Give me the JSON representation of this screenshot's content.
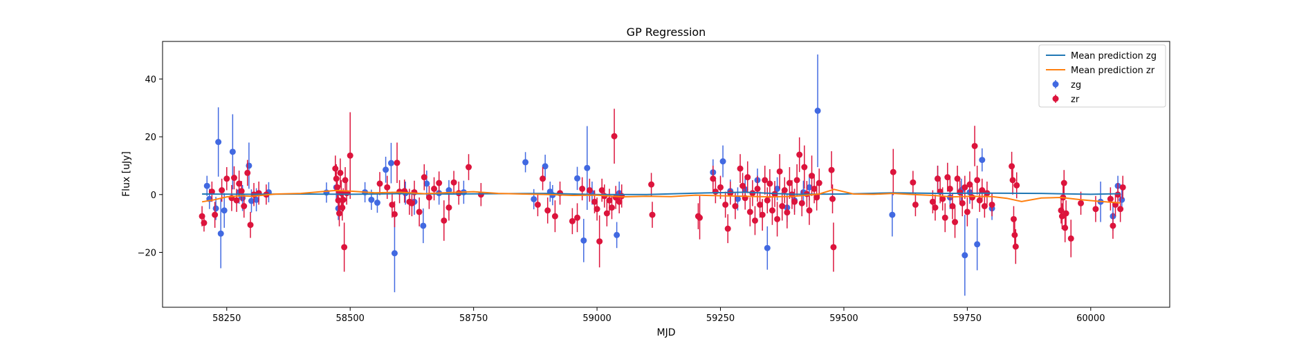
{
  "chart_data": {
    "type": "scatter",
    "title": "GP Regression",
    "xlabel": "MJD",
    "ylabel": "Flux [uJy]",
    "xlim": [
      58120,
      60160
    ],
    "ylim": [
      -39,
      53
    ],
    "xticks": [
      58250,
      58500,
      58750,
      59000,
      59250,
      59500,
      59750,
      60000
    ],
    "yticks": [
      -20,
      0,
      20,
      40
    ],
    "ytick_labels": [
      "−20",
      "0",
      "20",
      "40"
    ],
    "legend_position": "top-right",
    "legend": [
      {
        "label": "Mean prediction zg",
        "kind": "line",
        "color": "#1f77b4"
      },
      {
        "label": "Mean prediction zr",
        "kind": "line",
        "color": "#ff7f0e"
      },
      {
        "label": "zg",
        "kind": "marker",
        "color": "#4169e1"
      },
      {
        "label": "zr",
        "kind": "marker",
        "color": "#dc143c"
      }
    ],
    "series": [
      {
        "name": "Mean prediction zg",
        "kind": "line",
        "color": "#1f77b4",
        "x": [
          58200,
          58300,
          58400,
          58500,
          58600,
          58700,
          58800,
          58900,
          59000,
          59100,
          59200,
          59300,
          59400,
          59500,
          59600,
          59700,
          59800,
          59900,
          60000,
          60060
        ],
        "y": [
          0.2,
          0.1,
          0.2,
          0.1,
          0.3,
          0.2,
          0.3,
          0.4,
          0.0,
          0.0,
          0.5,
          0.8,
          0.1,
          0.2,
          0.6,
          0.4,
          0.5,
          0.4,
          0.1,
          0.3
        ]
      },
      {
        "name": "Mean prediction zr",
        "kind": "line",
        "color": "#ff7f0e",
        "x": [
          58200,
          58225,
          58250,
          58280,
          58300,
          58350,
          58400,
          58470,
          58500,
          58550,
          58600,
          58650,
          58700,
          58750,
          58800,
          58850,
          58900,
          58950,
          59000,
          59050,
          59100,
          59150,
          59200,
          59250,
          59300,
          59350,
          59400,
          59450,
          59480,
          59520,
          59560,
          59600,
          59640,
          59680,
          59720,
          59760,
          59800,
          59830,
          59860,
          59900,
          59940,
          59980,
          60020,
          60060
        ],
        "y": [
          -2.5,
          -1.8,
          -0.8,
          -0.4,
          -0.6,
          0.2,
          0.4,
          1.4,
          1.2,
          0.6,
          0.8,
          0.3,
          0.7,
          1.0,
          0.4,
          0.2,
          0.0,
          -0.3,
          -0.2,
          -0.8,
          -0.6,
          -0.7,
          -0.2,
          -0.4,
          -0.6,
          -0.8,
          -0.6,
          0.2,
          1.8,
          0.2,
          0.1,
          0.4,
          0.0,
          -0.3,
          -0.8,
          -0.6,
          -0.7,
          -1.3,
          -2.4,
          -1.2,
          -1.0,
          -1.8,
          -2.4,
          -2.9
        ]
      },
      {
        "name": "zg",
        "kind": "errorbar",
        "color": "#4169e1",
        "x": [
          58210,
          58215,
          58228,
          58233,
          58238,
          58245,
          58262,
          58275,
          58282,
          58295,
          58300,
          58310,
          58335,
          58452,
          58472,
          58476,
          58530,
          58543,
          58555,
          58572,
          58583,
          58590,
          58612,
          58630,
          58648,
          58655,
          58680,
          58700,
          58730,
          58855,
          58872,
          58895,
          58905,
          58910,
          58960,
          58973,
          58980,
          58990,
          59040,
          59045,
          59235,
          59255,
          59270,
          59285,
          59300,
          59325,
          59345,
          59365,
          59385,
          59400,
          59418,
          59430,
          59447,
          59598,
          59690,
          59715,
          59738,
          59745,
          59755,
          59770,
          59780,
          59800,
          60020,
          60045,
          60055,
          60063
        ],
        "y": [
          3.0,
          -1.5,
          -4.8,
          18.2,
          -13.5,
          -5.5,
          14.8,
          0.8,
          -1.2,
          10.0,
          -2.2,
          -1.8,
          0.8,
          0.7,
          2.5,
          -4.8,
          0.8,
          -1.8,
          -2.8,
          8.6,
          10.9,
          -20.3,
          0.5,
          -2.5,
          -10.8,
          3.8,
          0.5,
          1.5,
          0.8,
          11.2,
          -1.6,
          9.8,
          1.0,
          -0.2,
          5.6,
          -15.9,
          9.2,
          0.5,
          -14.0,
          0.5,
          7.7,
          11.5,
          1.2,
          -1.5,
          1.8,
          5.0,
          -18.5,
          2.0,
          -4.5,
          -2.0,
          0.8,
          2.5,
          29.0,
          -7.0,
          5.5,
          -1.0,
          1.5,
          -21.0,
          0.8,
          -17.2,
          12.0,
          -4.8,
          -2.5,
          -7.5,
          3.0,
          -1.8
        ],
        "err": [
          3.5,
          3.5,
          4.0,
          12.0,
          12.0,
          6.0,
          13.0,
          4.0,
          4.5,
          8.0,
          4.0,
          4.0,
          3.5,
          3.5,
          4.0,
          4.0,
          3.5,
          3.5,
          3.5,
          4.5,
          7.0,
          13.5,
          4.0,
          4.5,
          6.0,
          4.5,
          4.0,
          3.5,
          4.0,
          3.5,
          3.5,
          4.0,
          3.5,
          3.5,
          4.0,
          7.5,
          14.5,
          4.0,
          4.5,
          4.0,
          4.5,
          5.5,
          4.0,
          4.0,
          4.0,
          4.0,
          7.5,
          4.0,
          5.0,
          4.0,
          4.0,
          4.5,
          19.5,
          7.5,
          4.5,
          4.0,
          4.0,
          14.0,
          4.0,
          9.0,
          4.0,
          4.0,
          7.0,
          5.0,
          3.5,
          4.0
        ]
      },
      {
        "name": "zr",
        "kind": "errorbar",
        "color": "#dc143c",
        "x": [
          58200,
          58204,
          58220,
          58226,
          58240,
          58250,
          58260,
          58265,
          58270,
          58275,
          58280,
          58285,
          58292,
          58298,
          58305,
          58315,
          58330,
          58470,
          58472,
          58474,
          58476,
          58478,
          58480,
          58482,
          58484,
          58486,
          58488,
          58490,
          58493,
          58500,
          58560,
          58575,
          58585,
          58590,
          58595,
          58600,
          58610,
          58620,
          58625,
          58630,
          58640,
          58650,
          58660,
          58670,
          58680,
          58690,
          58700,
          58710,
          58720,
          58740,
          58765,
          58880,
          58890,
          58900,
          58915,
          58925,
          58950,
          58960,
          58970,
          58985,
          58995,
          59000,
          59005,
          59010,
          59015,
          59020,
          59025,
          59030,
          59035,
          59038,
          59045,
          59050,
          59110,
          59112,
          59205,
          59208,
          59235,
          59240,
          59250,
          59260,
          59265,
          59270,
          59280,
          59290,
          59295,
          59300,
          59305,
          59310,
          59315,
          59320,
          59325,
          59330,
          59335,
          59340,
          59345,
          59350,
          59355,
          59360,
          59365,
          59370,
          59375,
          59380,
          59385,
          59390,
          59395,
          59400,
          59405,
          59410,
          59415,
          59420,
          59425,
          59430,
          59435,
          59440,
          59445,
          59450,
          59475,
          59477,
          59479,
          59600,
          59640,
          59645,
          59680,
          59685,
          59690,
          59695,
          59700,
          59705,
          59710,
          59715,
          59720,
          59725,
          59730,
          59735,
          59740,
          59745,
          59750,
          59755,
          59760,
          59765,
          59770,
          59775,
          59780,
          59785,
          59790,
          59800,
          59840,
          59842,
          59844,
          59846,
          59848,
          59850,
          59940,
          59942,
          59944,
          59946,
          59948,
          59950,
          59960,
          59980,
          60010,
          60040,
          60045,
          60050,
          60055,
          60060,
          60065
        ],
        "y": [
          -7.5,
          -9.8,
          1.0,
          -7.0,
          1.5,
          5.5,
          -1.2,
          5.8,
          -2.0,
          3.8,
          1.2,
          -4.0,
          7.5,
          -10.5,
          0.0,
          0.5,
          0.0,
          9.0,
          5.5,
          2.5,
          -2.0,
          -6.5,
          7.5,
          0.5,
          -4.5,
          -1.8,
          -18.2,
          5.0,
          0.5,
          13.5,
          3.8,
          2.5,
          -3.5,
          -6.8,
          11.0,
          1.0,
          1.2,
          -2.5,
          -3.0,
          0.8,
          -6.0,
          6.0,
          -1.0,
          2.0,
          4.0,
          -9.0,
          -4.5,
          4.2,
          0.5,
          9.5,
          0.0,
          -3.5,
          5.5,
          -5.5,
          -7.5,
          0.5,
          -9.2,
          -8.0,
          2.0,
          1.5,
          -2.5,
          -5.0,
          -16.2,
          1.5,
          -0.5,
          -6.5,
          -2.0,
          -4.5,
          20.2,
          -1.0,
          -2.5,
          -0.5,
          3.5,
          -7.0,
          -7.5,
          -8.0,
          5.5,
          1.0,
          2.5,
          -3.5,
          -11.8,
          0.5,
          -4.0,
          9.0,
          3.0,
          -1.2,
          6.0,
          -6.0,
          0.5,
          -9.0,
          2.0,
          -3.5,
          -7.0,
          5.0,
          -2.0,
          3.8,
          -5.5,
          0.2,
          -8.5,
          8.0,
          -4.0,
          1.5,
          -6.2,
          4.0,
          0.0,
          -2.5,
          5.0,
          13.8,
          -3.0,
          9.5,
          0.2,
          -5.5,
          6.5,
          2.0,
          -1.0,
          4.0,
          8.5,
          -1.5,
          -18.2,
          7.8,
          4.2,
          -3.5,
          -2.5,
          -4.5,
          5.5,
          1.0,
          -1.5,
          -8.0,
          6.0,
          2.0,
          -4.0,
          -9.5,
          5.5,
          0.8,
          -3.0,
          2.5,
          -6.0,
          3.5,
          -1.0,
          16.8,
          5.0,
          -2.0,
          1.5,
          -4.0,
          0.5,
          -3.5,
          9.8,
          5.0,
          -8.5,
          -14.0,
          -18.0,
          3.2,
          -5.5,
          -7.5,
          -1.0,
          4.0,
          -11.5,
          -6.5,
          -15.2,
          -3.0,
          -5.0,
          -1.5,
          -10.8,
          -3.5,
          0.0,
          -5.0,
          2.5
        ],
        "err": [
          3.5,
          3.0,
          3.5,
          4.5,
          4.0,
          4.0,
          4.5,
          4.0,
          4.0,
          4.5,
          3.5,
          4.0,
          4.5,
          4.5,
          4.0,
          4.0,
          3.5,
          4.5,
          5.0,
          4.0,
          4.0,
          4.5,
          5.0,
          4.5,
          4.5,
          4.0,
          8.5,
          4.5,
          4.0,
          15.0,
          4.0,
          4.0,
          4.5,
          4.5,
          7.0,
          4.0,
          4.0,
          4.5,
          4.5,
          4.0,
          5.0,
          4.5,
          4.0,
          4.0,
          4.0,
          7.0,
          4.5,
          4.0,
          4.0,
          4.5,
          4.0,
          4.0,
          4.0,
          4.5,
          5.5,
          4.0,
          4.5,
          5.0,
          4.0,
          4.0,
          4.0,
          4.0,
          9.0,
          4.0,
          4.0,
          4.5,
          4.0,
          4.0,
          9.5,
          4.0,
          4.0,
          4.0,
          4.0,
          4.5,
          4.5,
          7.5,
          4.5,
          4.0,
          4.0,
          4.5,
          5.0,
          4.0,
          4.5,
          5.0,
          4.5,
          4.0,
          5.5,
          5.0,
          4.5,
          5.0,
          4.5,
          4.5,
          5.5,
          5.0,
          4.5,
          5.0,
          5.0,
          4.5,
          6.0,
          6.0,
          5.0,
          4.5,
          5.5,
          5.5,
          5.0,
          4.5,
          5.5,
          6.0,
          4.5,
          7.5,
          4.5,
          5.0,
          7.0,
          5.0,
          4.5,
          5.0,
          6.5,
          5.0,
          8.5,
          8.0,
          4.0,
          4.0,
          4.0,
          4.5,
          4.5,
          4.0,
          4.0,
          5.0,
          5.0,
          4.0,
          4.5,
          5.5,
          4.5,
          4.0,
          4.5,
          4.0,
          5.0,
          4.5,
          4.0,
          7.0,
          5.0,
          4.0,
          4.0,
          4.0,
          4.0,
          4.0,
          5.0,
          5.0,
          4.5,
          5.0,
          6.0,
          4.5,
          4.5,
          4.5,
          4.0,
          4.5,
          5.0,
          4.5,
          6.5,
          4.0,
          4.5,
          4.0,
          4.5,
          4.0,
          4.0,
          4.5,
          4.0
        ]
      }
    ]
  }
}
